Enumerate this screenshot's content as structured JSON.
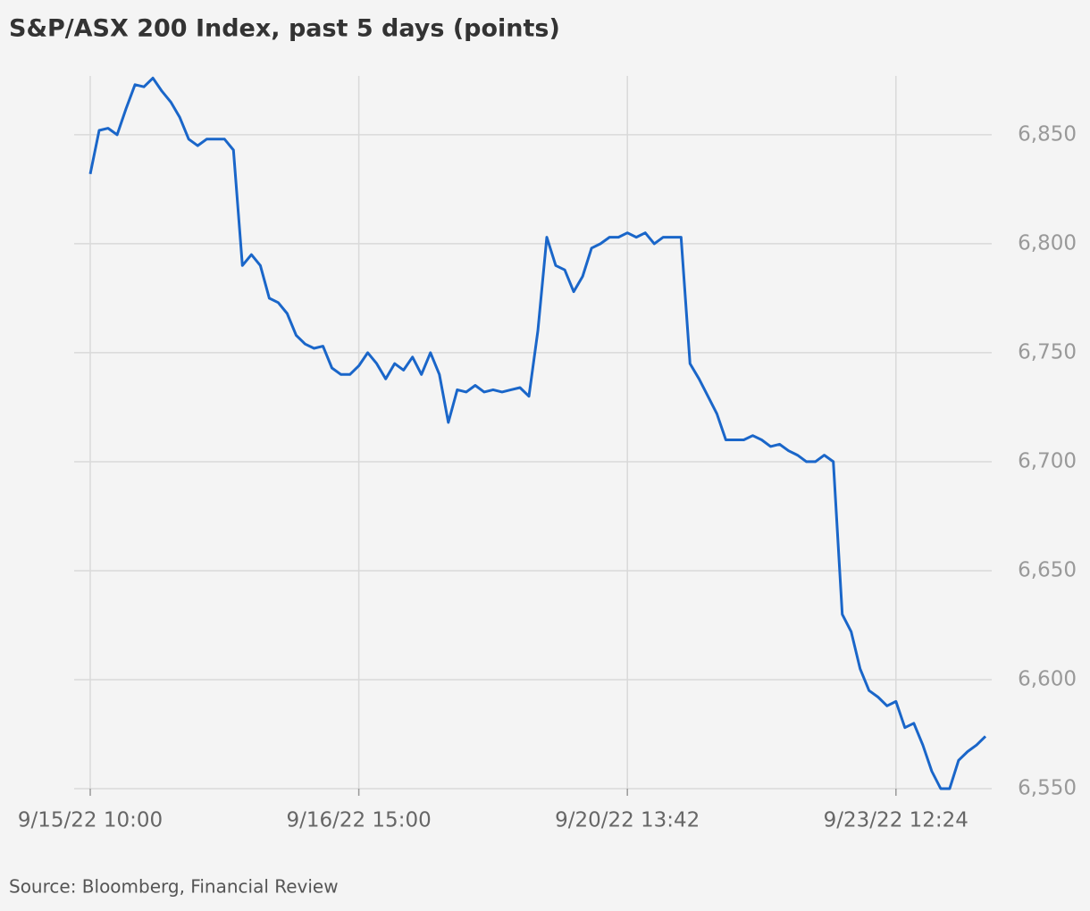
{
  "chart_data": {
    "type": "line",
    "title": "S&P/ASX 200 Index, past 5 days (points)",
    "source": "Source: Bloomberg, Financial Review",
    "categories": [
      "9/15/22 10:00",
      null,
      null,
      null,
      null,
      null,
      null,
      null,
      null,
      null,
      null,
      null,
      null,
      null,
      null,
      null,
      null,
      null,
      null,
      null,
      null,
      null,
      null,
      null,
      null,
      null,
      null,
      null,
      null,
      null,
      "9/16/22 15:00",
      null,
      null,
      null,
      null,
      null,
      null,
      null,
      null,
      null,
      null,
      null,
      null,
      null,
      null,
      null,
      null,
      null,
      null,
      null,
      null,
      null,
      null,
      null,
      null,
      null,
      null,
      null,
      null,
      null,
      "9/20/22 13:42",
      null,
      null,
      null,
      null,
      null,
      null,
      null,
      null,
      null,
      null,
      null,
      null,
      null,
      null,
      null,
      null,
      null,
      null,
      null,
      null,
      null,
      null,
      null,
      null,
      null,
      null,
      null,
      null,
      null,
      "9/23/22 12:24",
      null,
      null,
      null,
      null,
      null,
      null,
      null,
      null,
      null,
      null
    ],
    "values": [
      6832,
      6852,
      6853,
      6850,
      6862,
      6873,
      6872,
      6876,
      6870,
      6865,
      6858,
      6848,
      6845,
      6848,
      6848,
      6848,
      6843,
      6790,
      6795,
      6790,
      6775,
      6773,
      6768,
      6758,
      6754,
      6752,
      6753,
      6743,
      6740,
      6740,
      6744,
      6750,
      6745,
      6738,
      6745,
      6742,
      6748,
      6740,
      6750,
      6740,
      6718,
      6733,
      6732,
      6735,
      6732,
      6733,
      6732,
      6733,
      6734,
      6730,
      6760,
      6803,
      6790,
      6788,
      6778,
      6785,
      6798,
      6800,
      6803,
      6803,
      6805,
      6803,
      6805,
      6800,
      6803,
      6803,
      6803,
      6745,
      6738,
      6730,
      6722,
      6710,
      6710,
      6710,
      6712,
      6710,
      6707,
      6708,
      6705,
      6703,
      6700,
      6700,
      6703,
      6700,
      6630,
      6622,
      6605,
      6595,
      6592,
      6588,
      6590,
      6578,
      6580,
      6570,
      6558,
      6550,
      6550,
      6563,
      6567,
      6570,
      6574
    ],
    "color": "#1a66c9",
    "ylim": [
      6550,
      6877
    ],
    "yticks": [
      {
        "value": 6550,
        "label": "6,550"
      },
      {
        "value": 6600,
        "label": "6,600"
      },
      {
        "value": 6650,
        "label": "6,650"
      },
      {
        "value": 6700,
        "label": "6,700"
      },
      {
        "value": 6750,
        "label": "6,750"
      },
      {
        "value": 6800,
        "label": "6,800"
      },
      {
        "value": 6850,
        "label": "6,850"
      }
    ],
    "grid": true
  }
}
